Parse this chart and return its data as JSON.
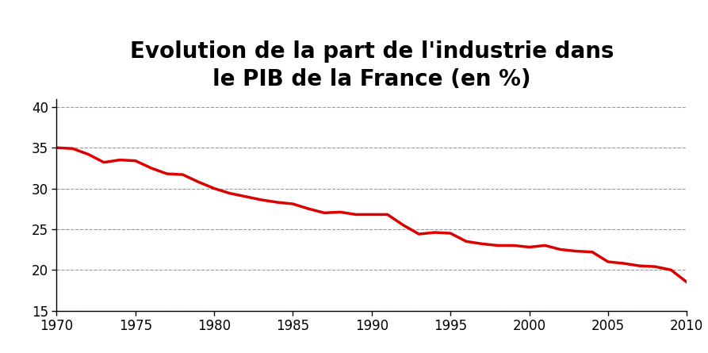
{
  "title": "Evolution de la part de l'industrie dans\nle PIB de la France (en %)",
  "title_fontsize": 20,
  "title_fontweight": "bold",
  "line_color": "#dd0000",
  "line_width": 2.5,
  "background_color": "#ffffff",
  "xlim": [
    1970,
    2010
  ],
  "ylim": [
    15,
    41
  ],
  "yticks": [
    15,
    20,
    25,
    30,
    35,
    40
  ],
  "xticks": [
    1970,
    1975,
    1980,
    1985,
    1990,
    1995,
    2000,
    2005,
    2010
  ],
  "grid_color": "#999999",
  "grid_linestyle": "--",
  "grid_linewidth": 0.8,
  "tick_fontsize": 12,
  "years": [
    1970,
    1971,
    1972,
    1973,
    1974,
    1975,
    1976,
    1977,
    1978,
    1979,
    1980,
    1981,
    1982,
    1983,
    1984,
    1985,
    1986,
    1987,
    1988,
    1989,
    1990,
    1991,
    1992,
    1993,
    1994,
    1995,
    1996,
    1997,
    1998,
    1999,
    2000,
    2001,
    2002,
    2003,
    2004,
    2005,
    2006,
    2007,
    2008,
    2009,
    2010
  ],
  "values": [
    35.0,
    34.9,
    34.2,
    33.2,
    33.5,
    33.4,
    32.5,
    31.8,
    31.7,
    30.8,
    30.0,
    29.4,
    29.0,
    28.6,
    28.3,
    28.1,
    27.5,
    27.0,
    27.1,
    26.8,
    26.8,
    26.8,
    25.5,
    24.4,
    24.6,
    24.5,
    23.5,
    23.2,
    23.0,
    23.0,
    22.8,
    23.0,
    22.5,
    22.3,
    22.2,
    21.0,
    20.8,
    20.5,
    20.4,
    20.0,
    18.5
  ]
}
